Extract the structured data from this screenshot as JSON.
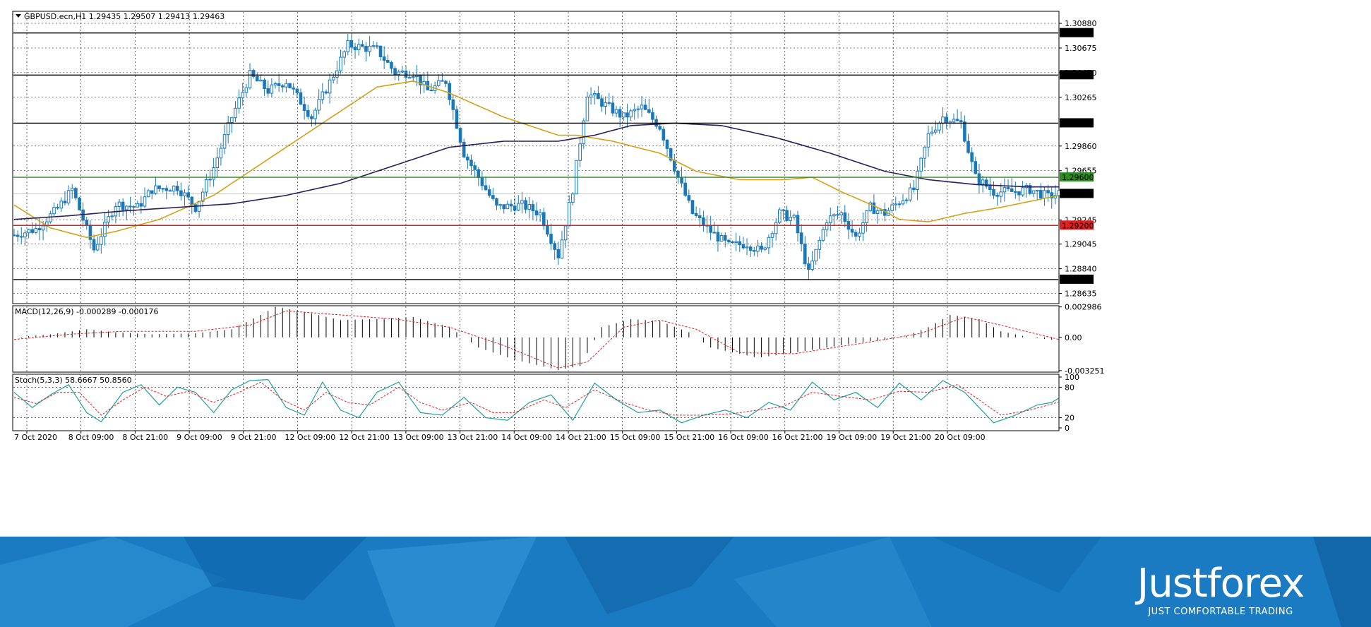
{
  "header": {
    "symbol_line": "GBPUSD.ecn,H1  1.29435 1.29507 1.29413 1.29463",
    "macd_label": "MACD(12,26,9) -0.000289 -0.000176",
    "stoch_label": "Stoch(5,3,3) 58.6667 50.8560"
  },
  "brand": {
    "name": "Justforex",
    "tagline": "JUST COMFORTABLE TRADING"
  },
  "colors": {
    "candle_up": "#1a78b8",
    "candle_down": "#1a78b8",
    "ma_fast": "#d4a017",
    "ma_slow": "#2b1c5a",
    "level_black": "#000000",
    "level_green": "#2e8b22",
    "level_red": "#e02020",
    "macd_signal": "#e02020",
    "stoch_main": "#20a0a0",
    "stoch_signal": "#e02020",
    "banner": "#1478c0"
  },
  "chart_data": [
    {
      "type": "candlestick",
      "panel": "price",
      "symbol": "GBPUSD.ecn",
      "timeframe": "H1",
      "ylim": [
        1.2855,
        1.3098
      ],
      "y_ticks": [
        "1.30880",
        "1.30675",
        "1.30470",
        "1.30265",
        "1.29860",
        "1.29655",
        "1.29245",
        "1.29045",
        "1.28840",
        "1.28635"
      ],
      "x_ticks": [
        "7 Oct 2020",
        "8 Oct 09:00",
        "8 Oct 21:00",
        "9 Oct 09:00",
        "9 Oct 21:00",
        "12 Oct 09:00",
        "12 Oct 21:00",
        "13 Oct 09:00",
        "13 Oct 21:00",
        "14 Oct 09:00",
        "14 Oct 21:00",
        "15 Oct 09:00",
        "15 Oct 21:00",
        "16 Oct 09:00",
        "16 Oct 21:00",
        "19 Oct 09:00",
        "19 Oct 21:00",
        "20 Oct 09:00"
      ],
      "levels": [
        {
          "value": 1.308,
          "label": "1.30800",
          "color": "black"
        },
        {
          "value": 1.3045,
          "label": "1.30450",
          "color": "black"
        },
        {
          "value": 1.3005,
          "label": "1.30050",
          "color": "black"
        },
        {
          "value": 1.296,
          "label": "1.29600",
          "color": "green"
        },
        {
          "value": 1.292,
          "label": "1.29200",
          "color": "red"
        },
        {
          "value": 1.2875,
          "label": "1.28750",
          "color": "black"
        }
      ],
      "current_price": {
        "value": 1.29463,
        "label": "1.29463"
      },
      "close_anchors": [
        [
          0,
          1.2912
        ],
        [
          6,
          1.2917
        ],
        [
          12,
          1.2934
        ],
        [
          16,
          1.295
        ],
        [
          22,
          1.29
        ],
        [
          28,
          1.2938
        ],
        [
          34,
          1.2935
        ],
        [
          38,
          1.295
        ],
        [
          45,
          1.2952
        ],
        [
          50,
          1.2935
        ],
        [
          55,
          1.2968
        ],
        [
          60,
          1.301
        ],
        [
          65,
          1.3045
        ],
        [
          70,
          1.3032
        ],
        [
          75,
          1.304
        ],
        [
          82,
          1.301
        ],
        [
          88,
          1.3045
        ],
        [
          92,
          1.307
        ],
        [
          100,
          1.3066
        ],
        [
          105,
          1.3047
        ],
        [
          110,
          1.3047
        ],
        [
          114,
          1.3032
        ],
        [
          119,
          1.304
        ],
        [
          124,
          1.298
        ],
        [
          128,
          1.296
        ],
        [
          133,
          1.2935
        ],
        [
          140,
          1.2937
        ],
        [
          145,
          1.293
        ],
        [
          150,
          1.2895
        ],
        [
          154,
          1.295
        ],
        [
          158,
          1.303
        ],
        [
          163,
          1.302
        ],
        [
          168,
          1.301
        ],
        [
          173,
          1.3018
        ],
        [
          178,
          1.3002
        ],
        [
          183,
          1.296
        ],
        [
          187,
          1.293
        ],
        [
          192,
          1.2915
        ],
        [
          197,
          1.2903
        ],
        [
          202,
          1.2905
        ],
        [
          206,
          1.2898
        ],
        [
          211,
          1.293
        ],
        [
          215,
          1.2925
        ],
        [
          219,
          1.288
        ],
        [
          224,
          1.2925
        ],
        [
          228,
          1.293
        ],
        [
          232,
          1.291
        ],
        [
          236,
          1.2935
        ],
        [
          240,
          1.293
        ],
        [
          244,
          1.294
        ],
        [
          248,
          1.295
        ],
        [
          252,
          1.2995
        ],
        [
          256,
          1.301
        ],
        [
          261,
          1.3005
        ],
        [
          265,
          1.296
        ],
        [
          270,
          1.2948
        ],
        [
          275,
          1.2948
        ],
        [
          280,
          1.295
        ],
        [
          285,
          1.2944
        ],
        [
          288,
          1.29463
        ]
      ],
      "ma_fast_anchors": [
        [
          0,
          1.2937
        ],
        [
          10,
          1.2918
        ],
        [
          20,
          1.291
        ],
        [
          28,
          1.2915
        ],
        [
          40,
          1.2925
        ],
        [
          55,
          1.2945
        ],
        [
          70,
          1.2975
        ],
        [
          85,
          1.3005
        ],
        [
          100,
          1.3035
        ],
        [
          110,
          1.304
        ],
        [
          120,
          1.303
        ],
        [
          135,
          1.301
        ],
        [
          150,
          1.2995
        ],
        [
          155,
          1.2995
        ],
        [
          165,
          1.299
        ],
        [
          178,
          1.298
        ],
        [
          188,
          1.2965
        ],
        [
          200,
          1.2958
        ],
        [
          212,
          1.2958
        ],
        [
          220,
          1.296
        ],
        [
          228,
          1.2948
        ],
        [
          238,
          1.2935
        ],
        [
          244,
          1.2925
        ],
        [
          252,
          1.2923
        ],
        [
          262,
          1.293
        ],
        [
          272,
          1.2935
        ],
        [
          288,
          1.2945
        ]
      ],
      "ma_slow_anchors": [
        [
          0,
          1.2925
        ],
        [
          15,
          1.2928
        ],
        [
          30,
          1.2932
        ],
        [
          45,
          1.2935
        ],
        [
          60,
          1.2938
        ],
        [
          75,
          1.2945
        ],
        [
          90,
          1.2955
        ],
        [
          105,
          1.297
        ],
        [
          120,
          1.2985
        ],
        [
          135,
          1.299
        ],
        [
          150,
          1.299
        ],
        [
          160,
          1.2995
        ],
        [
          170,
          1.3003
        ],
        [
          182,
          1.3005
        ],
        [
          195,
          1.3003
        ],
        [
          210,
          1.2993
        ],
        [
          225,
          1.298
        ],
        [
          240,
          1.2965
        ],
        [
          252,
          1.2958
        ],
        [
          265,
          1.2954
        ],
        [
          280,
          1.2952
        ],
        [
          288,
          1.2952
        ]
      ]
    },
    {
      "type": "histogram",
      "panel": "macd",
      "name": "MACD(12,26,9)",
      "ylim": [
        -0.0034,
        0.0031
      ],
      "y_ticks": [
        "0.002986",
        "0.00",
        "-0.003251"
      ],
      "main": -0.000289,
      "signal": -0.000176,
      "hist_anchors": [
        [
          0,
          0.0
        ],
        [
          10,
          0.0003
        ],
        [
          20,
          0.0008
        ],
        [
          28,
          0.0005
        ],
        [
          38,
          0.0003
        ],
        [
          50,
          0.0004
        ],
        [
          60,
          0.0008
        ],
        [
          68,
          0.0022
        ],
        [
          72,
          0.003
        ],
        [
          80,
          0.0025
        ],
        [
          90,
          0.0017
        ],
        [
          100,
          0.0018
        ],
        [
          110,
          0.002
        ],
        [
          120,
          0.001
        ],
        [
          128,
          -0.001
        ],
        [
          138,
          -0.0022
        ],
        [
          150,
          -0.0032
        ],
        [
          156,
          -0.0028
        ],
        [
          162,
          0.001
        ],
        [
          170,
          0.0018
        ],
        [
          178,
          0.0016
        ],
        [
          186,
          0.0005
        ],
        [
          192,
          -0.001
        ],
        [
          205,
          -0.002
        ],
        [
          215,
          -0.0015
        ],
        [
          224,
          -0.001
        ],
        [
          235,
          -0.0004
        ],
        [
          245,
          0.0
        ],
        [
          252,
          0.001
        ],
        [
          258,
          0.0022
        ],
        [
          266,
          0.0018
        ],
        [
          272,
          0.0006
        ],
        [
          280,
          0.0
        ],
        [
          288,
          -0.0003
        ]
      ],
      "signal_anchors": [
        [
          0,
          -0.0002
        ],
        [
          15,
          0.0003
        ],
        [
          30,
          0.0006
        ],
        [
          50,
          0.0006
        ],
        [
          65,
          0.0012
        ],
        [
          75,
          0.0026
        ],
        [
          90,
          0.0022
        ],
        [
          105,
          0.0018
        ],
        [
          120,
          0.001
        ],
        [
          135,
          -0.0008
        ],
        [
          150,
          -0.003
        ],
        [
          158,
          -0.0024
        ],
        [
          168,
          0.001
        ],
        [
          178,
          0.0017
        ],
        [
          188,
          0.0008
        ],
        [
          200,
          -0.0015
        ],
        [
          215,
          -0.0016
        ],
        [
          235,
          -0.0005
        ],
        [
          250,
          0.0004
        ],
        [
          262,
          0.002
        ],
        [
          272,
          0.0012
        ],
        [
          288,
          -0.0002
        ]
      ]
    },
    {
      "type": "line",
      "panel": "stochastic",
      "name": "Stoch(5,3,3)",
      "ylim": [
        0,
        100
      ],
      "y_ticks": [
        "100",
        "80",
        "20",
        "0"
      ],
      "main": 58.6667,
      "signal": 50.856,
      "main_anchors": [
        [
          0,
          70
        ],
        [
          5,
          40
        ],
        [
          10,
          65
        ],
        [
          15,
          85
        ],
        [
          20,
          30
        ],
        [
          24,
          12
        ],
        [
          30,
          70
        ],
        [
          35,
          85
        ],
        [
          40,
          45
        ],
        [
          45,
          80
        ],
        [
          50,
          70
        ],
        [
          55,
          30
        ],
        [
          60,
          75
        ],
        [
          65,
          93
        ],
        [
          70,
          95
        ],
        [
          75,
          40
        ],
        [
          80,
          25
        ],
        [
          85,
          90
        ],
        [
          90,
          35
        ],
        [
          95,
          20
        ],
        [
          100,
          70
        ],
        [
          106,
          90
        ],
        [
          112,
          30
        ],
        [
          118,
          25
        ],
        [
          124,
          60
        ],
        [
          130,
          20
        ],
        [
          136,
          15
        ],
        [
          142,
          50
        ],
        [
          148,
          65
        ],
        [
          154,
          15
        ],
        [
          160,
          88
        ],
        [
          166,
          55
        ],
        [
          172,
          30
        ],
        [
          178,
          35
        ],
        [
          184,
          10
        ],
        [
          190,
          25
        ],
        [
          196,
          35
        ],
        [
          202,
          20
        ],
        [
          208,
          50
        ],
        [
          214,
          35
        ],
        [
          220,
          90
        ],
        [
          226,
          55
        ],
        [
          232,
          70
        ],
        [
          238,
          40
        ],
        [
          244,
          88
        ],
        [
          250,
          55
        ],
        [
          256,
          93
        ],
        [
          262,
          70
        ],
        [
          266,
          40
        ],
        [
          270,
          10
        ],
        [
          276,
          25
        ],
        [
          282,
          45
        ],
        [
          286,
          50
        ],
        [
          288,
          58.67
        ]
      ],
      "signal_anchors": [
        [
          0,
          60
        ],
        [
          6,
          48
        ],
        [
          12,
          70
        ],
        [
          18,
          70
        ],
        [
          24,
          25
        ],
        [
          30,
          55
        ],
        [
          36,
          80
        ],
        [
          42,
          62
        ],
        [
          48,
          72
        ],
        [
          55,
          50
        ],
        [
          62,
          70
        ],
        [
          68,
          90
        ],
        [
          74,
          55
        ],
        [
          80,
          35
        ],
        [
          86,
          70
        ],
        [
          92,
          50
        ],
        [
          98,
          45
        ],
        [
          106,
          80
        ],
        [
          112,
          50
        ],
        [
          118,
          35
        ],
        [
          126,
          50
        ],
        [
          132,
          30
        ],
        [
          138,
          30
        ],
        [
          146,
          55
        ],
        [
          152,
          40
        ],
        [
          160,
          75
        ],
        [
          168,
          50
        ],
        [
          175,
          35
        ],
        [
          182,
          25
        ],
        [
          190,
          25
        ],
        [
          198,
          28
        ],
        [
          205,
          35
        ],
        [
          212,
          42
        ],
        [
          220,
          70
        ],
        [
          228,
          62
        ],
        [
          236,
          55
        ],
        [
          244,
          72
        ],
        [
          252,
          70
        ],
        [
          260,
          85
        ],
        [
          266,
          55
        ],
        [
          272,
          25
        ],
        [
          280,
          35
        ],
        [
          288,
          50.86
        ]
      ]
    }
  ]
}
